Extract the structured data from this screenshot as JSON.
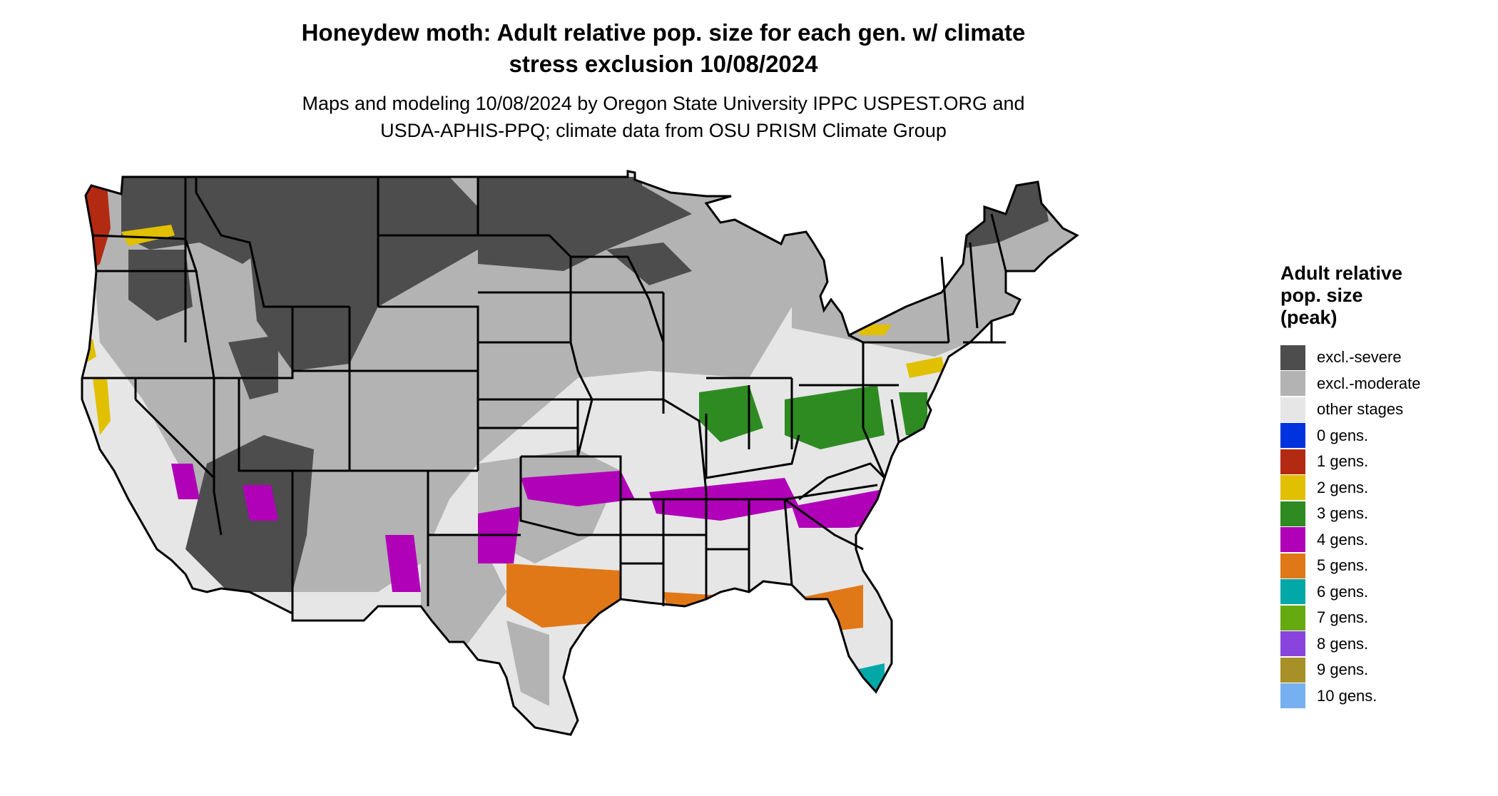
{
  "title_line1": "Honeydew moth: Adult relative pop. size for each gen. w/ climate",
  "title_line2": "stress exclusion 10/08/2024",
  "subtitle_line1": "Maps and modeling 10/08/2024 by Oregon State University IPPC USPEST.ORG and",
  "subtitle_line2": "USDA-APHIS-PPQ; climate data from OSU PRISM Climate Group",
  "legend": {
    "title_line1": "Adult relative",
    "title_line2": "pop. size",
    "title_line3": "(peak)",
    "items": [
      {
        "label": "excl.-severe",
        "color": "#4d4d4d"
      },
      {
        "label": "excl.-moderate",
        "color": "#b3b3b3"
      },
      {
        "label": "other stages",
        "color": "#e6e6e6"
      },
      {
        "label": "0 gens.",
        "color": "#0033dd"
      },
      {
        "label": "1 gens.",
        "color": "#b22a12"
      },
      {
        "label": "2 gens.",
        "color": "#e0c000"
      },
      {
        "label": "3 gens.",
        "color": "#2e8b22"
      },
      {
        "label": "4 gens.",
        "color": "#b000b8"
      },
      {
        "label": "5 gens.",
        "color": "#e07818"
      },
      {
        "label": "6 gens.",
        "color": "#00a8a8"
      },
      {
        "label": "7 gens.",
        "color": "#66aa11"
      },
      {
        "label": "8 gens.",
        "color": "#8844dd"
      },
      {
        "label": "9 gens.",
        "color": "#a89028"
      },
      {
        "label": "10 gens.",
        "color": "#77b0f0"
      }
    ]
  }
}
